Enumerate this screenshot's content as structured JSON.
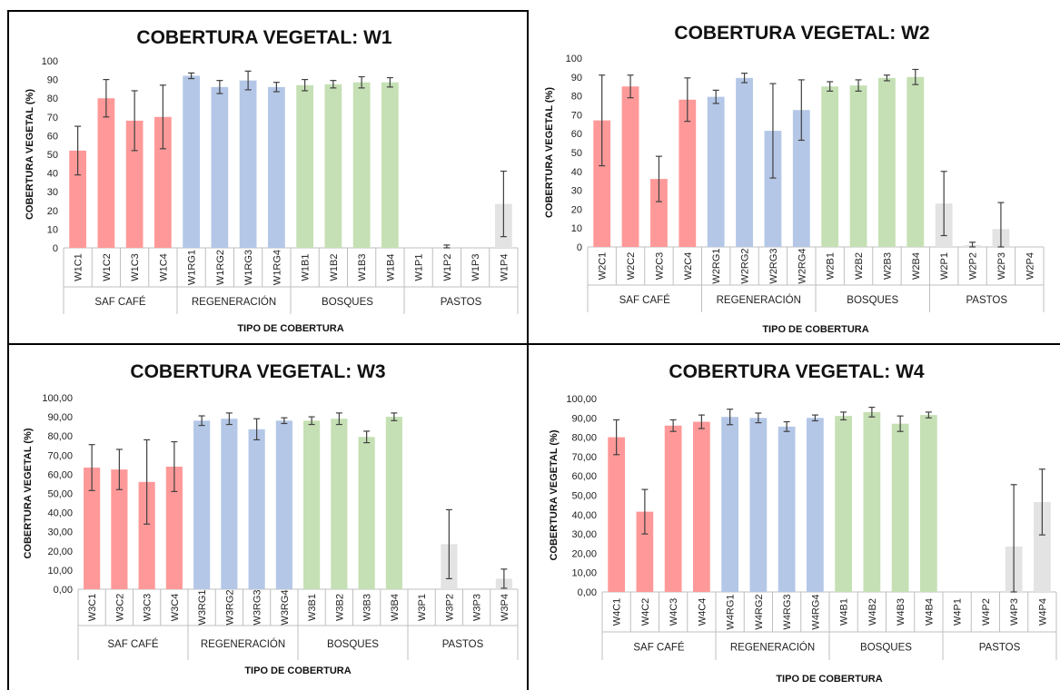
{
  "colors": {
    "saf_cafe": "#ff9999",
    "regeneracion": "#b4c7e7",
    "bosques": "#c5e0b4",
    "pastos": "#e3e3e3",
    "error_bar": "#404040",
    "axis": "#bfbfbf"
  },
  "chart_data": [
    {
      "type": "bar",
      "title": "COBERTURA VEGETAL: W1",
      "ylabel": "COBERTURA VEGETAL (%)",
      "xlabel": "TIPO DE COBERTURA",
      "ylim": [
        0,
        100
      ],
      "yticks": [
        "0",
        "10",
        "20",
        "30",
        "40",
        "50",
        "60",
        "70",
        "80",
        "90",
        "100"
      ],
      "grid": false,
      "groups": [
        {
          "label": "SAF CAFÉ",
          "color_key": "saf_cafe",
          "categories": [
            "W1C1",
            "W1C2",
            "W1C3",
            "W1C4"
          ],
          "values": [
            52,
            80,
            68,
            70
          ],
          "errors": [
            13,
            10,
            16,
            17
          ]
        },
        {
          "label": "REGENERACIÓN",
          "color_key": "regeneracion",
          "categories": [
            "W1RG1",
            "W1RG2",
            "W1RG3",
            "W1RG4"
          ],
          "values": [
            92,
            86,
            89.5,
            86
          ],
          "errors": [
            1.5,
            3.5,
            5,
            2.5
          ]
        },
        {
          "label": "BOSQUES",
          "color_key": "bosques",
          "categories": [
            "W1B1",
            "W1B2",
            "W1B3",
            "W1B4"
          ],
          "values": [
            87,
            87.5,
            88.5,
            88.5
          ],
          "errors": [
            3,
            2,
            3,
            2.5
          ]
        },
        {
          "label": "PASTOS",
          "color_key": "pastos",
          "categories": [
            "W1P1",
            "W1P2",
            "W1P3",
            "W1P4"
          ],
          "values": [
            0,
            0.5,
            0,
            23.5
          ],
          "errors": [
            0,
            1,
            0,
            17.5
          ]
        }
      ]
    },
    {
      "type": "bar",
      "title": "COBERTURA VEGETAL: W2",
      "ylabel": "COBERTURA VEGETAL (%)",
      "xlabel": "TIPO DE COBERTURA",
      "ylim": [
        0,
        100
      ],
      "yticks": [
        "0",
        "10",
        "20",
        "30",
        "40",
        "50",
        "60",
        "70",
        "80",
        "90",
        "100"
      ],
      "grid": false,
      "groups": [
        {
          "label": "SAF CAFÉ",
          "color_key": "saf_cafe",
          "categories": [
            "W2C1",
            "W2C2",
            "W2C3",
            "W2C4"
          ],
          "values": [
            67,
            85,
            36,
            78
          ],
          "errors": [
            24,
            6,
            12,
            11.5
          ]
        },
        {
          "label": "REGENERACIÓN",
          "color_key": "regeneracion",
          "categories": [
            "W2RG1",
            "W2RG2",
            "W2RG3",
            "W2RG4"
          ],
          "values": [
            79.5,
            89.5,
            61.5,
            72.5
          ],
          "errors": [
            3.5,
            2.5,
            25,
            16
          ]
        },
        {
          "label": "BOSQUES",
          "color_key": "bosques",
          "categories": [
            "W2B1",
            "W2B2",
            "W2B3",
            "W2B4"
          ],
          "values": [
            85,
            85.5,
            89.5,
            90
          ],
          "errors": [
            2.5,
            3,
            1.5,
            4
          ]
        },
        {
          "label": "PASTOS",
          "color_key": "pastos",
          "categories": [
            "W2P1",
            "W2P2",
            "W2P3",
            "W2P4"
          ],
          "values": [
            23,
            1,
            9.5,
            0
          ],
          "errors": [
            17,
            1.5,
            14,
            0
          ]
        }
      ]
    },
    {
      "type": "bar",
      "title": "COBERTURA VEGETAL: W3",
      "ylabel": "COBERTURA VEGETAL (%)",
      "xlabel": "TIPO DE COBERTURA",
      "ylim": [
        0,
        100
      ],
      "yticks": [
        "0,00",
        "10,00",
        "20,00",
        "30,00",
        "40,00",
        "50,00",
        "60,00",
        "70,00",
        "80,00",
        "90,00",
        "100,00"
      ],
      "grid": false,
      "groups": [
        {
          "label": "SAF CAFÉ",
          "color_key": "saf_cafe",
          "categories": [
            "W3C1",
            "W3C2",
            "W3C3",
            "W3C4"
          ],
          "values": [
            63.5,
            62.5,
            56,
            64
          ],
          "errors": [
            12,
            10.5,
            22,
            13
          ]
        },
        {
          "label": "REGENERACIÓN",
          "color_key": "regeneracion",
          "categories": [
            "W3RG1",
            "W3RG2",
            "W3RG3",
            "W3RG4"
          ],
          "values": [
            88,
            89,
            83.5,
            88
          ],
          "errors": [
            2.5,
            3,
            5.5,
            1.5
          ]
        },
        {
          "label": "BOSQUES",
          "color_key": "bosques",
          "categories": [
            "W3B1",
            "W3B2",
            "W3B3",
            "W3B4"
          ],
          "values": [
            88,
            89,
            79.5,
            90
          ],
          "errors": [
            2,
            3,
            3,
            2
          ]
        },
        {
          "label": "PASTOS",
          "color_key": "pastos",
          "categories": [
            "W3P1",
            "W3P2",
            "W3P3",
            "W3P4"
          ],
          "values": [
            0,
            23.5,
            0,
            5.5
          ],
          "errors": [
            0,
            18,
            0,
            5
          ]
        }
      ]
    },
    {
      "type": "bar",
      "title": "COBERTURA VEGETAL: W4",
      "ylabel": "COBERTURA VEGETAL (%)",
      "xlabel": "TIPO DE COBERTURA",
      "ylim": [
        0,
        100
      ],
      "yticks": [
        "0,00",
        "10,00",
        "20,00",
        "30,00",
        "40,00",
        "50,00",
        "60,00",
        "70,00",
        "80,00",
        "90,00",
        "100,00"
      ],
      "grid": false,
      "groups": [
        {
          "label": "SAF CAFÉ",
          "color_key": "saf_cafe",
          "categories": [
            "W4C1",
            "W4C2",
            "W4C3",
            "W4C4"
          ],
          "values": [
            80,
            41.5,
            86,
            88
          ],
          "errors": [
            9,
            11.5,
            3,
            3.5
          ]
        },
        {
          "label": "REGENERACIÓN",
          "color_key": "regeneracion",
          "categories": [
            "W4RG1",
            "W4RG2",
            "W4RG3",
            "W4RG4"
          ],
          "values": [
            90.5,
            90,
            85.5,
            90
          ],
          "errors": [
            4,
            2.5,
            2.5,
            1.5
          ]
        },
        {
          "label": "BOSQUES",
          "color_key": "bosques",
          "categories": [
            "W4B1",
            "W4B2",
            "W4B3",
            "W4B4"
          ],
          "values": [
            91,
            93,
            87,
            91.5
          ],
          "errors": [
            2,
            2.5,
            4,
            1.5
          ]
        },
        {
          "label": "PASTOS",
          "color_key": "pastos",
          "categories": [
            "W4P1",
            "W4P2",
            "W4P3",
            "W4P4"
          ],
          "values": [
            0,
            0,
            23.5,
            46.5
          ],
          "errors": [
            0,
            0,
            32,
            17
          ]
        }
      ]
    }
  ]
}
